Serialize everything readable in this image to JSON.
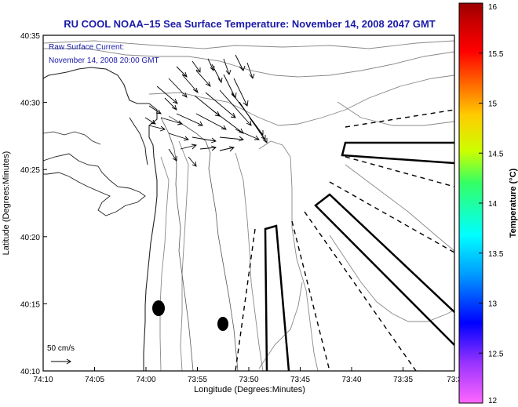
{
  "chart_data": {
    "type": "map",
    "title": "RU COOL  NOAA–15  Sea Surface Temperature:  November 14, 2008 2047 GMT",
    "annotation": {
      "line1": "Raw Surface Current:",
      "line2": "November 14, 2008 20:00 GMT"
    },
    "xlabel": "Longitude (Degrees:Minutes)",
    "ylabel": "Latitude (Degrees:Minutes)",
    "x_ticks": [
      "74:10",
      "74:05",
      "74:00",
      "73:55",
      "73:50",
      "73:45",
      "73:40",
      "73:35",
      "73:3"
    ],
    "y_ticks": [
      "40:10",
      "40:15",
      "40:20",
      "40:25",
      "40:30",
      "40:35"
    ],
    "xlim": [
      "74:10",
      "73:30"
    ],
    "ylim": [
      "40:10",
      "40:35"
    ],
    "scale_label": "50 cm/s",
    "colorbar": {
      "label": "Temperature (°C)",
      "ticks": [
        "12",
        "12.5",
        "13",
        "13.5",
        "14",
        "14.5",
        "15",
        "15.5",
        "16"
      ],
      "range": [
        12,
        16
      ],
      "colors": [
        "#ff66ff",
        "#9933ff",
        "#0000ff",
        "#0099ff",
        "#00ffff",
        "#33ff66",
        "#ccff00",
        "#ffcc00",
        "#ff6600",
        "#ff0000",
        "#cc0000",
        "#990000"
      ]
    }
  }
}
